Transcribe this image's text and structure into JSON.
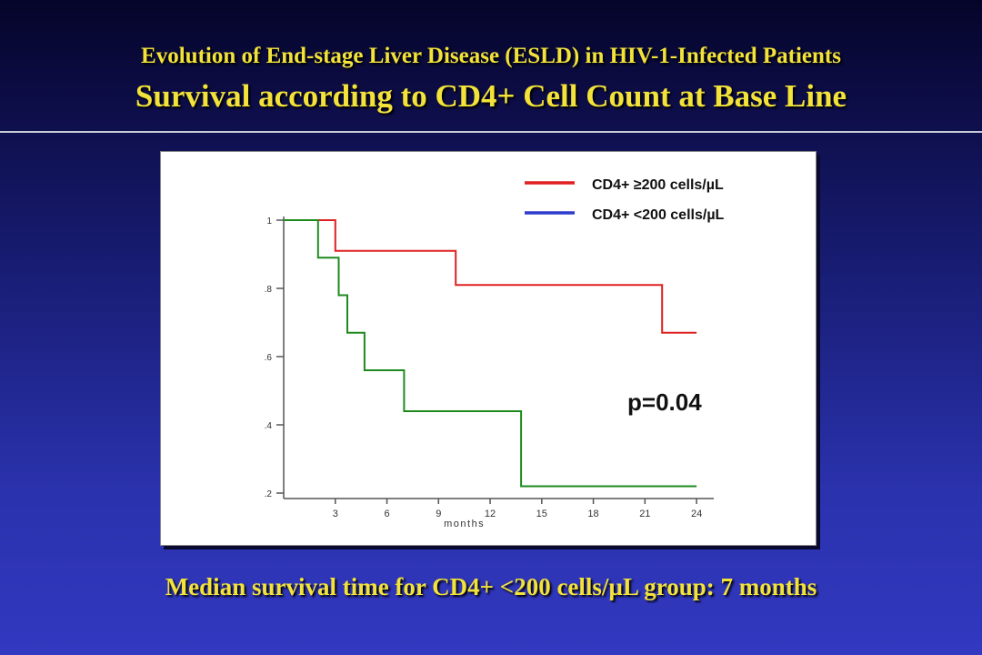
{
  "header": {
    "title": "Evolution of End-stage Liver Disease (ESLD) in HIV-1-Infected Patients",
    "subtitle": "Survival according to CD4+ Cell Count at Base Line"
  },
  "footer": {
    "note": "Median survival time for CD4+ <200 cells/µL group: 7 months"
  },
  "colors": {
    "title_text": "#f2e23a",
    "high_cd4": "#e02020",
    "low_cd4_legend": "#2e3ccc",
    "low_cd4_curve": "#1e8a1e"
  },
  "chart_data": {
    "type": "line",
    "step": true,
    "title": "",
    "xlabel": "months",
    "ylabel": "",
    "xlim": [
      0,
      25
    ],
    "ylim": [
      0.2,
      1.0
    ],
    "x_ticks": [
      3,
      6,
      9,
      12,
      15,
      18,
      21,
      24
    ],
    "y_ticks": [
      0.2,
      0.4,
      0.6,
      0.8,
      1.0
    ],
    "y_tick_labels": [
      ".2",
      ".4",
      ".6",
      ".8",
      "1"
    ],
    "legend_position": "top-right",
    "annotation": "p=0.04",
    "series": [
      {
        "name": "CD4+ ≥200 cells/µL",
        "legend_color": "#e02020",
        "color": "#e02020",
        "x": [
          0,
          3,
          3,
          10,
          10,
          22,
          22,
          24
        ],
        "y": [
          1.0,
          1.0,
          0.91,
          0.91,
          0.81,
          0.81,
          0.67,
          0.67
        ]
      },
      {
        "name": "CD4+ <200 cells/µL",
        "legend_color": "#2e3ccc",
        "color": "#1e8a1e",
        "x": [
          0,
          2,
          2,
          3.2,
          3.2,
          3.7,
          3.7,
          4.7,
          4.7,
          7,
          7,
          13.8,
          13.8,
          24
        ],
        "y": [
          1.0,
          1.0,
          0.89,
          0.89,
          0.78,
          0.78,
          0.67,
          0.67,
          0.56,
          0.56,
          0.44,
          0.44,
          0.22,
          0.22
        ]
      }
    ]
  }
}
